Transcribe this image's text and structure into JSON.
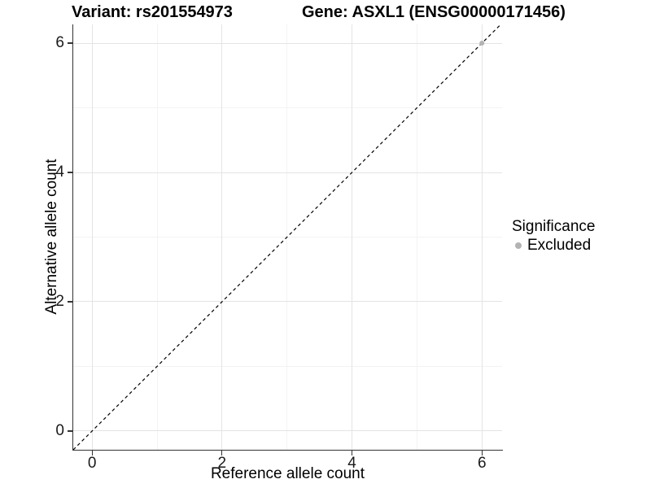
{
  "chart_data": {
    "type": "scatter",
    "title_left": "Variant: rs201554973",
    "title_right": "Gene: ASXL1 (ENSG00000171456)",
    "xlabel": "Reference allele count",
    "ylabel": "Alternative allele count",
    "xlim": [
      -0.29,
      6.31
    ],
    "ylim": [
      -0.29,
      6.29
    ],
    "xticks": [
      0,
      2,
      4,
      6
    ],
    "yticks": [
      0,
      2,
      4,
      6
    ],
    "minor_xticks": [
      1,
      3,
      5
    ],
    "minor_yticks": [
      1,
      3,
      5
    ],
    "grid": "major+minor",
    "identity_line": {
      "style": "dashed",
      "color": "#000000"
    },
    "series": [
      {
        "name": "Excluded",
        "color": "#b3b3b3",
        "points": [
          {
            "x": 6,
            "y": 6
          }
        ]
      }
    ],
    "legend": {
      "position": "right",
      "title": "Significance",
      "items": [
        {
          "label": "Excluded",
          "color": "#b3b3b3"
        }
      ]
    }
  }
}
